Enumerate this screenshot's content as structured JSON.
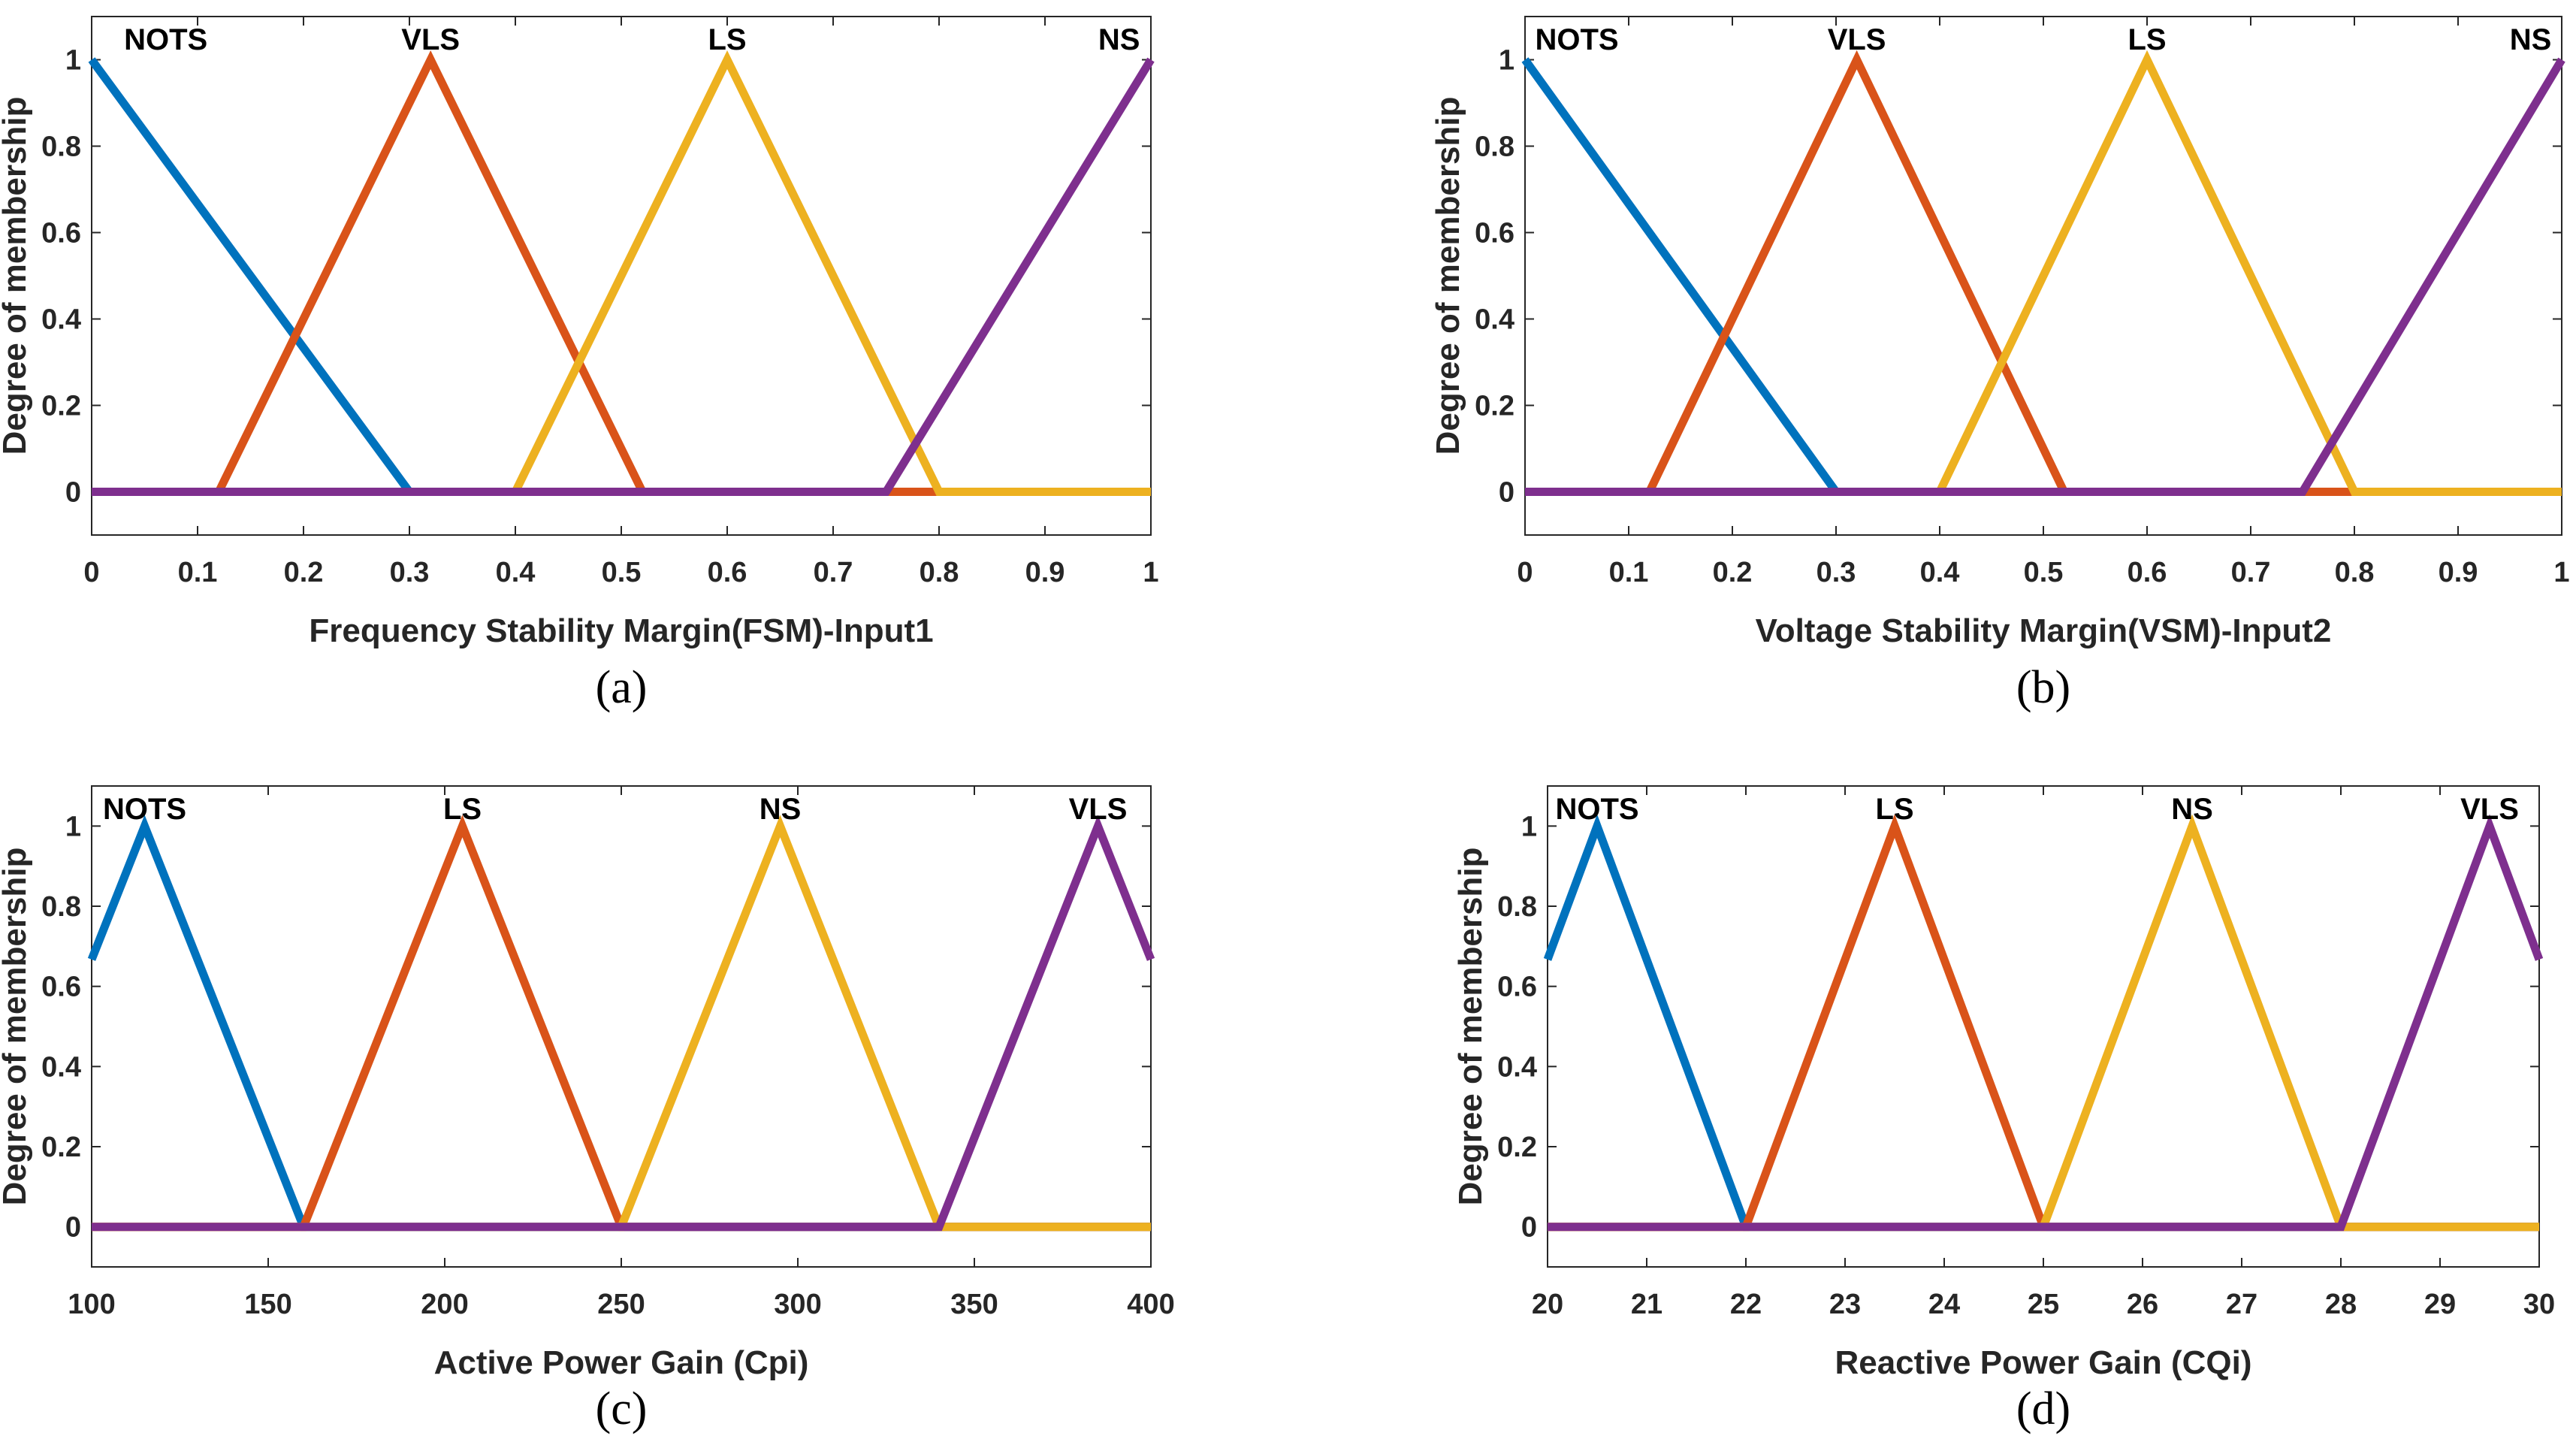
{
  "chart_data": [
    {
      "type": "line",
      "panel": "a",
      "caption": "(a)",
      "xlabel": "Frequency Stability Margin(FSM)-Input1",
      "ylabel": "Degree of membership",
      "xlim": [
        0,
        1
      ],
      "ylim": [
        -0.1,
        1.1
      ],
      "xticks": [
        "0",
        "0.1",
        "0.2",
        "0.3",
        "0.4",
        "0.5",
        "0.6",
        "0.7",
        "0.8",
        "0.9",
        "1"
      ],
      "yticks": [
        "0",
        "0.2",
        "0.4",
        "0.6",
        "0.8",
        "1"
      ],
      "series": [
        {
          "name": "NOTS",
          "color": "#0072BD",
          "label_x": 0.07,
          "points": [
            [
              0,
              1
            ],
            [
              0.3,
              0
            ],
            [
              1,
              0
            ]
          ]
        },
        {
          "name": "VLS",
          "color": "#D95319",
          "label_x": 0.32,
          "points": [
            [
              0,
              0
            ],
            [
              0.12,
              0
            ],
            [
              0.32,
              1
            ],
            [
              0.52,
              0
            ],
            [
              1,
              0
            ]
          ]
        },
        {
          "name": "LS",
          "color": "#EDB120",
          "label_x": 0.6,
          "points": [
            [
              0,
              0
            ],
            [
              0.4,
              0
            ],
            [
              0.6,
              1
            ],
            [
              0.8,
              0
            ],
            [
              1,
              0
            ]
          ]
        },
        {
          "name": "NS",
          "color": "#7E2F8E",
          "label_x": 0.97,
          "points": [
            [
              0,
              0
            ],
            [
              0.75,
              0
            ],
            [
              1,
              1
            ]
          ]
        }
      ]
    },
    {
      "type": "line",
      "panel": "b",
      "caption": "(b)",
      "xlabel": "Voltage Stability Margin(VSM)-Input2",
      "ylabel": "Degree of membership",
      "xlim": [
        0,
        1
      ],
      "ylim": [
        -0.1,
        1.1
      ],
      "xticks": [
        "0",
        "0.1",
        "0.2",
        "0.3",
        "0.4",
        "0.5",
        "0.6",
        "0.7",
        "0.8",
        "0.9",
        "1"
      ],
      "yticks": [
        "0",
        "0.2",
        "0.4",
        "0.6",
        "0.8",
        "1"
      ],
      "series": [
        {
          "name": "NOTS",
          "color": "#0072BD",
          "label_x": 0.05,
          "points": [
            [
              0,
              1
            ],
            [
              0.3,
              0
            ],
            [
              1,
              0
            ]
          ]
        },
        {
          "name": "VLS",
          "color": "#D95319",
          "label_x": 0.32,
          "points": [
            [
              0,
              0
            ],
            [
              0.12,
              0
            ],
            [
              0.32,
              1
            ],
            [
              0.52,
              0
            ],
            [
              1,
              0
            ]
          ]
        },
        {
          "name": "LS",
          "color": "#EDB120",
          "label_x": 0.6,
          "points": [
            [
              0,
              0
            ],
            [
              0.4,
              0
            ],
            [
              0.6,
              1
            ],
            [
              0.8,
              0
            ],
            [
              1,
              0
            ]
          ]
        },
        {
          "name": "NS",
          "color": "#7E2F8E",
          "label_x": 0.97,
          "points": [
            [
              0,
              0
            ],
            [
              0.75,
              0
            ],
            [
              1,
              1
            ]
          ]
        }
      ]
    },
    {
      "type": "line",
      "panel": "c",
      "caption": "(c)",
      "xlabel": "Active Power Gain (Cpi)",
      "ylabel": "Degree of membership",
      "xlim": [
        100,
        400
      ],
      "ylim": [
        -0.1,
        1.1
      ],
      "xticks": [
        "100",
        "150",
        "200",
        "250",
        "300",
        "350",
        "400"
      ],
      "yticks": [
        "0",
        "0.2",
        "0.4",
        "0.6",
        "0.8",
        "1"
      ],
      "series": [
        {
          "name": "NOTS",
          "color": "#0072BD",
          "label_x": 115,
          "points": [
            [
              100,
              0.667
            ],
            [
              115,
              1
            ],
            [
              160,
              0
            ],
            [
              400,
              0
            ]
          ]
        },
        {
          "name": "LS",
          "color": "#D95319",
          "label_x": 205,
          "points": [
            [
              100,
              0
            ],
            [
              160,
              0
            ],
            [
              205,
              1
            ],
            [
              250,
              0
            ],
            [
              400,
              0
            ]
          ]
        },
        {
          "name": "NS",
          "color": "#EDB120",
          "label_x": 295,
          "points": [
            [
              100,
              0
            ],
            [
              250,
              0
            ],
            [
              295,
              1
            ],
            [
              340,
              0
            ],
            [
              400,
              0
            ]
          ]
        },
        {
          "name": "VLS",
          "color": "#7E2F8E",
          "label_x": 385,
          "points": [
            [
              100,
              0
            ],
            [
              340,
              0
            ],
            [
              385,
              1
            ],
            [
              400,
              0.667
            ]
          ]
        }
      ]
    },
    {
      "type": "line",
      "panel": "d",
      "caption": "(d)",
      "xlabel": "Reactive Power Gain (CQi)",
      "ylabel": "Degree of membership",
      "xlim": [
        20,
        30
      ],
      "ylim": [
        -0.1,
        1.1
      ],
      "xticks": [
        "20",
        "21",
        "22",
        "23",
        "24",
        "25",
        "26",
        "27",
        "28",
        "29",
        "30"
      ],
      "yticks": [
        "0",
        "0.2",
        "0.4",
        "0.6",
        "0.8",
        "1"
      ],
      "series": [
        {
          "name": "NOTS",
          "color": "#0072BD",
          "label_x": 20.5,
          "points": [
            [
              20,
              0.667
            ],
            [
              20.5,
              1
            ],
            [
              22,
              0
            ],
            [
              30,
              0
            ]
          ]
        },
        {
          "name": "LS",
          "color": "#D95319",
          "label_x": 23.5,
          "points": [
            [
              20,
              0
            ],
            [
              22,
              0
            ],
            [
              23.5,
              1
            ],
            [
              25,
              0
            ],
            [
              30,
              0
            ]
          ]
        },
        {
          "name": "NS",
          "color": "#EDB120",
          "label_x": 26.5,
          "points": [
            [
              20,
              0
            ],
            [
              25,
              0
            ],
            [
              26.5,
              1
            ],
            [
              28,
              0
            ],
            [
              30,
              0
            ]
          ]
        },
        {
          "name": "VLS",
          "color": "#7E2F8E",
          "label_x": 29.5,
          "points": [
            [
              20,
              0
            ],
            [
              28,
              0
            ],
            [
              29.5,
              1
            ],
            [
              30,
              0.667
            ]
          ]
        }
      ]
    }
  ]
}
